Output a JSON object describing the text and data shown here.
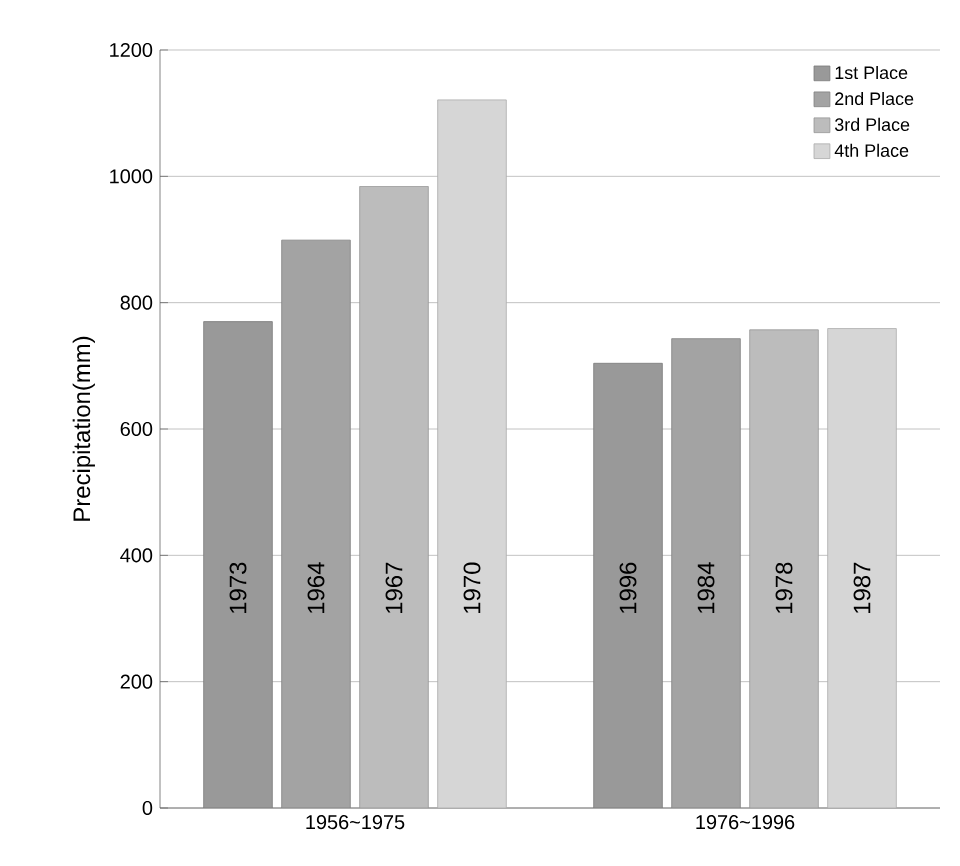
{
  "chart_data": {
    "type": "bar",
    "ylabel": "Precipitation(mm)",
    "categories": [
      "1956~1975",
      "1976~1996"
    ],
    "series": [
      {
        "name": "1st Place",
        "color": "#999999",
        "values": [
          770,
          704
        ]
      },
      {
        "name": "2nd Place",
        "color": "#a3a3a3",
        "values": [
          899,
          743
        ]
      },
      {
        "name": "3rd Place",
        "color": "#bcbcbc",
        "values": [
          984,
          757
        ]
      },
      {
        "name": "4th Place",
        "color": "#d6d6d6",
        "values": [
          1121,
          759
        ]
      }
    ],
    "annotations": [
      "1973",
      "1964",
      "1967",
      "1970",
      "1996",
      "1984",
      "1978",
      "1987"
    ],
    "ylim": [
      0,
      1200
    ],
    "yticks": [
      0,
      200,
      400,
      600,
      800,
      1000,
      1200
    ],
    "grid": "y",
    "legend": "top right"
  }
}
